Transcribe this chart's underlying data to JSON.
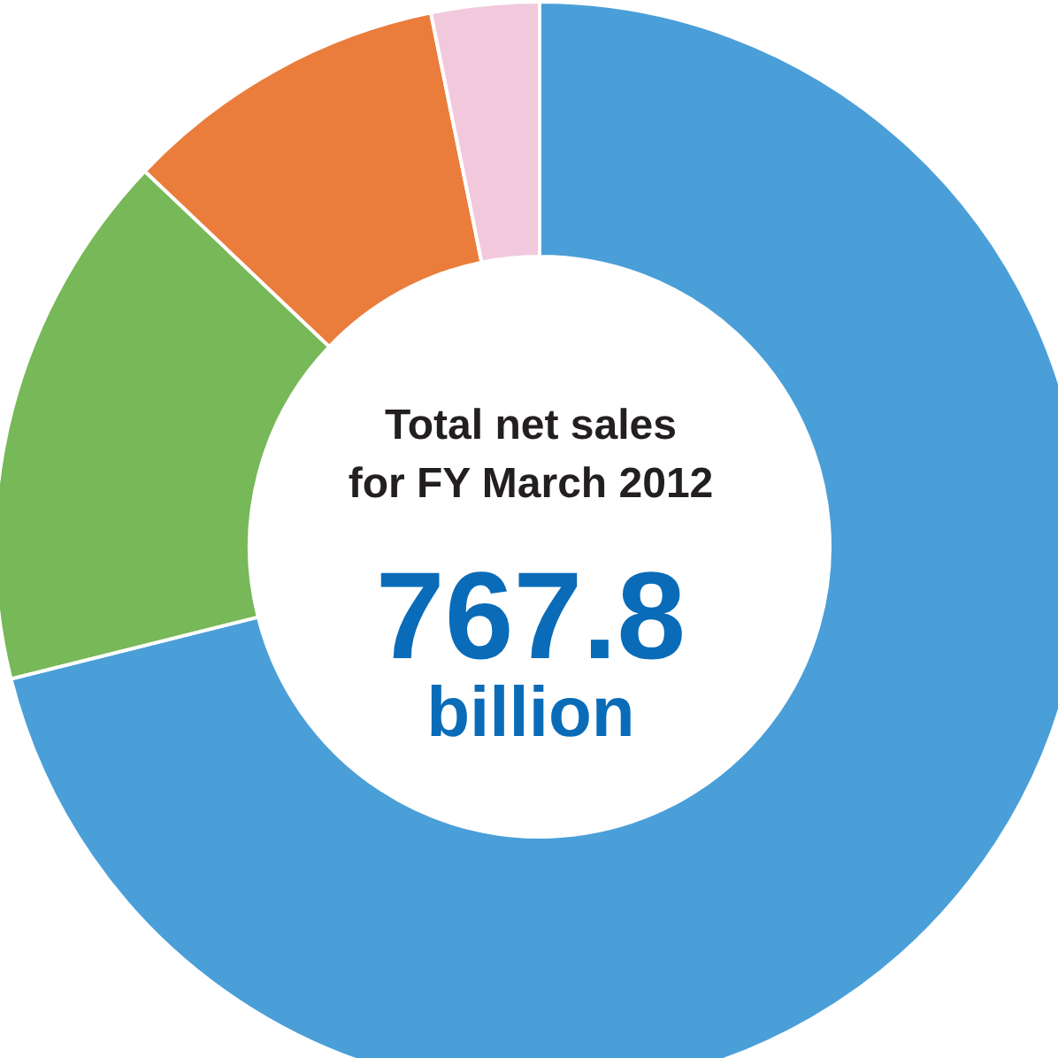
{
  "chart_data": {
    "type": "donut",
    "title": "Total net sales for FY March 2012",
    "annotations": [
      "767.8",
      "billion"
    ],
    "categories": [
      null,
      null,
      null,
      null
    ],
    "values": [
      71.1,
      16.0,
      9.7,
      3.2
    ],
    "colors": [
      "#4a9fd8",
      "#77b858",
      "#ea7d3c",
      "#f2c9dc"
    ]
  }
}
